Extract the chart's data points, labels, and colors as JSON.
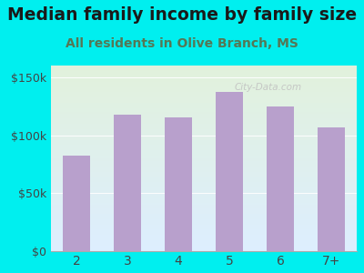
{
  "title": "Median family income by family size",
  "subtitle": "All residents in Olive Branch, MS",
  "categories": [
    "2",
    "3",
    "4",
    "5",
    "6",
    "7+"
  ],
  "values": [
    82000,
    118000,
    115000,
    137000,
    125000,
    107000
  ],
  "bar_color": "#b8a0cc",
  "title_fontsize": 13.5,
  "subtitle_fontsize": 10,
  "bg_outer": "#00efef",
  "bg_inner_top": "#e2f2dc",
  "bg_inner_bottom": "#ddeeff",
  "ylim": [
    0,
    160000
  ],
  "yticks": [
    0,
    50000,
    100000,
    150000
  ],
  "ytick_labels": [
    "$0",
    "$50k",
    "$100k",
    "$150k"
  ],
  "watermark": "City-Data.com",
  "title_color": "#1a1a1a",
  "subtitle_color": "#557755"
}
